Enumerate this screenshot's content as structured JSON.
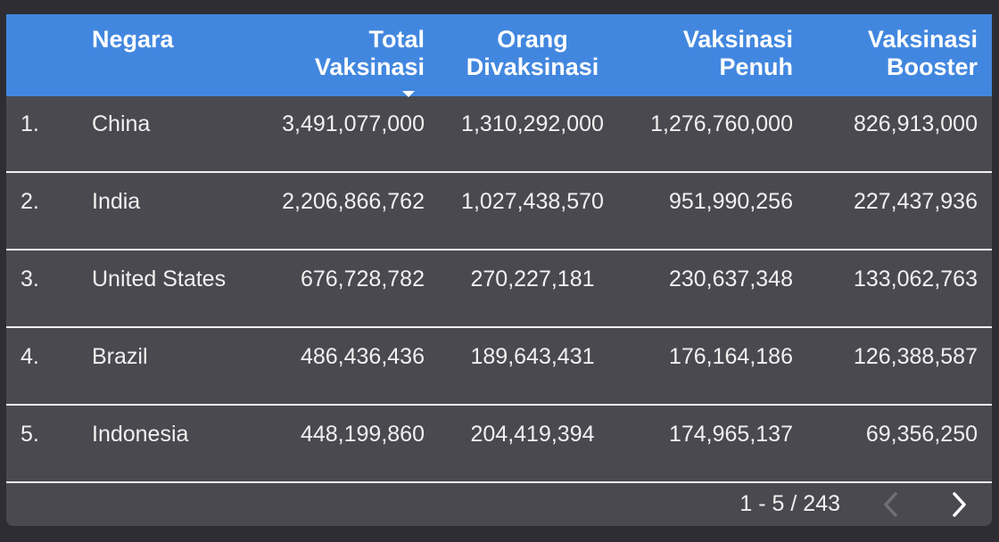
{
  "table": {
    "headers": {
      "country": "Negara",
      "total": "Total\nVaksinasi",
      "people": "Orang\nDivaksinasi",
      "full": "Vaksinasi\nPenuh",
      "booster": "Vaksinasi\nBooster"
    },
    "sort": {
      "column": "total",
      "direction": "descending"
    },
    "rows": [
      {
        "rank": "1.",
        "country": "China",
        "total": "3,491,077,000",
        "people": "1,310,292,000",
        "full": "1,276,760,000",
        "booster": "826,913,000"
      },
      {
        "rank": "2.",
        "country": "India",
        "total": "2,206,866,762",
        "people": "1,027,438,570",
        "full": "951,990,256",
        "booster": "227,437,936"
      },
      {
        "rank": "3.",
        "country": "United States",
        "total": "676,728,782",
        "people": "270,227,181",
        "full": "230,637,348",
        "booster": "133,062,763"
      },
      {
        "rank": "4.",
        "country": "Brazil",
        "total": "486,436,436",
        "people": "189,643,431",
        "full": "176,164,186",
        "booster": "126,388,587"
      },
      {
        "rank": "5.",
        "country": "Indonesia",
        "total": "448,199,860",
        "people": "204,419,394",
        "full": "174,965,137",
        "booster": "69,356,250"
      }
    ]
  },
  "pagination": {
    "range_label": "1 - 5 / 243",
    "prev_icon": "chevron-left-icon",
    "next_icon": "chevron-right-icon"
  },
  "colors": {
    "header_bg": "#4287df",
    "body_bg": "#4a4950",
    "page_bg": "#2e2d33",
    "text": "#f1f1f1"
  }
}
